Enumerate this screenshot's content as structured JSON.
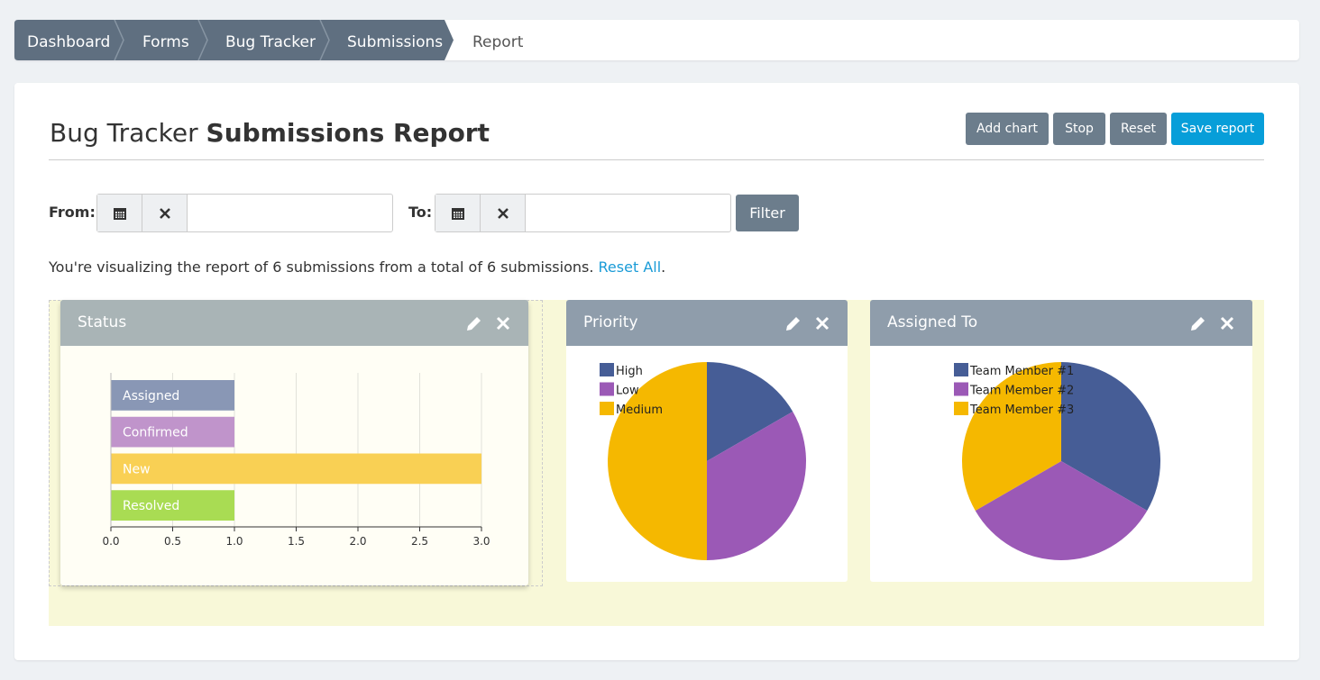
{
  "breadcrumb": [
    "Dashboard",
    "Forms",
    "Bug Tracker",
    "Submissions",
    "Report"
  ],
  "header": {
    "title_light": "Bug Tracker",
    "title_bold": "Submissions Report",
    "buttons": [
      "Add chart",
      "Stop",
      "Reset",
      "Save report"
    ]
  },
  "filter": {
    "from_label": "From:",
    "to_label": "To:",
    "button": "Filter"
  },
  "summary": {
    "text": "You're visualizing the report of 6 submissions from a total of 6 submissions.",
    "link": "Reset All",
    "suffix": "."
  },
  "chart_data": [
    {
      "type": "bar",
      "title": "Status",
      "orientation": "horizontal",
      "categories": [
        "Assigned",
        "Confirmed",
        "New",
        "Resolved"
      ],
      "values": [
        1,
        1,
        3,
        1
      ],
      "colors": [
        "#8997b5",
        "#c094cb",
        "#f9d054",
        "#a9dc53"
      ],
      "xlim": [
        0,
        3
      ],
      "xticks": [
        {
          "value": 0,
          "label": "0.0"
        },
        {
          "value": 0.5,
          "label": "0.5"
        },
        {
          "value": 1,
          "label": "1.0"
        },
        {
          "value": 1.5,
          "label": "1.5"
        },
        {
          "value": 2,
          "label": "2.0"
        },
        {
          "value": 2.5,
          "label": "2.5"
        },
        {
          "value": 3,
          "label": "3.0"
        }
      ],
      "grid": true
    },
    {
      "type": "pie",
      "title": "Priority",
      "categories": [
        "High",
        "Low",
        "Medium"
      ],
      "values": [
        1,
        2,
        3
      ],
      "colors": [
        "#465d96",
        "#9b59b6",
        "#f5b800"
      ]
    },
    {
      "type": "pie",
      "title": "Assigned To",
      "categories": [
        "Team Member #1",
        "Team Member #2",
        "Team Member #3"
      ],
      "values": [
        2,
        2,
        2
      ],
      "colors": [
        "#465d96",
        "#9b59b6",
        "#f5b800"
      ]
    }
  ]
}
